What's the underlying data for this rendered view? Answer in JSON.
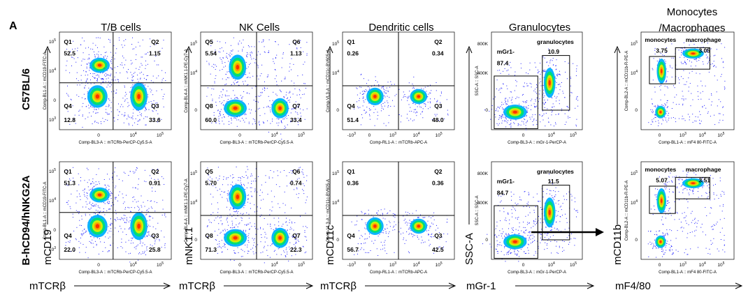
{
  "figure": {
    "panel_letter": "A",
    "row_labels": [
      "C57BL/6",
      "B-hCD94/hNKG2A"
    ],
    "column_titles": [
      "T/B cells",
      "NK Cells",
      "Dendritic cells",
      "Granulocytes",
      "Monocytes\n/Macrophages"
    ],
    "big_axis_y": [
      "mCD19",
      "mNK1.1",
      "mCD11c",
      "SSC-A",
      "mCD11b"
    ],
    "big_axis_x": [
      "mTCRβ",
      "mTCRβ",
      "mTCRβ",
      "mGr-1",
      "mF4/80"
    ]
  },
  "colors": {
    "density": [
      "#1a1aff",
      "#00b0ff",
      "#00e070",
      "#d8f000",
      "#ff9a00",
      "#ff2a00"
    ],
    "gate_line": "#000000",
    "arrow": "#000000"
  },
  "chart_data": [
    {
      "type": "scatter",
      "row": "C57BL/6",
      "population": "T/B cells",
      "xlabel": "Comp-BL3-A :: mTCRb-PerCP-Cy5.5-A",
      "ylabel": "Comp-BL1-A :: mCD19-FITC-A",
      "xtick_labels": [
        "0",
        "10^4",
        "10^5"
      ],
      "ytick_labels": [
        "10^3",
        "0",
        "10^4",
        "10^5"
      ],
      "gates": [
        {
          "name": "Q1",
          "value": "52.5"
        },
        {
          "name": "Q2",
          "value": "1.15"
        },
        {
          "name": "Q3",
          "value": "33.6"
        },
        {
          "name": "Q4",
          "value": "12.8"
        }
      ]
    },
    {
      "type": "scatter",
      "row": "C57BL/6",
      "population": "NK Cells",
      "xlabel": "Comp-BL3-A :: mTCRb-PerCP-Cy5.5-A",
      "ylabel": "Comp-BL4-A :: mNK1.1-PE-Cy7-A",
      "xtick_labels": [
        "0",
        "10^4",
        "10^5"
      ],
      "ytick_labels": [
        "0",
        "10^4",
        "10^5"
      ],
      "gates": [
        {
          "name": "Q5",
          "value": "5.54"
        },
        {
          "name": "Q6",
          "value": "1.13"
        },
        {
          "name": "Q7",
          "value": "33.4"
        },
        {
          "name": "Q8",
          "value": "60.0"
        }
      ]
    },
    {
      "type": "scatter",
      "row": "C57BL/6",
      "population": "Dendritic cells",
      "xlabel": "Comp-RL1-A :: mTCRb-APC-A",
      "ylabel": "Comp-VL3-A :: mCD11c-BV605-A",
      "xtick_labels": [
        "-10^3",
        "0",
        "10^3",
        "10^4",
        "10^5"
      ],
      "ytick_labels": [
        "0",
        "10^4",
        "10^5"
      ],
      "gates": [
        {
          "name": "Q1",
          "value": "0.26"
        },
        {
          "name": "Q2",
          "value": "0.34"
        },
        {
          "name": "Q3",
          "value": "48.0"
        },
        {
          "name": "Q4",
          "value": "51.4"
        }
      ]
    },
    {
      "type": "scatter",
      "row": "C57BL/6",
      "population": "Granulocytes",
      "xlabel": "Comp-BL3-A :: mGr-1-PerCP-A",
      "ylabel": "SSC-A :: SSC-A",
      "xtick_labels": [
        "0",
        "10^4",
        "10^5"
      ],
      "ytick_labels": [
        "0",
        "400K",
        "800K"
      ],
      "gates": [
        {
          "name": "mGr1-",
          "value": "87.4"
        },
        {
          "name": "granulocytes",
          "value": "10.9"
        }
      ]
    },
    {
      "type": "scatter",
      "row": "C57BL/6",
      "population": "Monocytes/Macrophages",
      "xlabel": "Comp-BL1-A :: mF4 80-FITC-A",
      "ylabel": "Comp-BL2-A :: mCD11b-R-PE-A",
      "xtick_labels": [
        "0",
        "10^3",
        "10^4",
        "10^5"
      ],
      "ytick_labels": [
        "0",
        "10^4",
        "10^5"
      ],
      "gates": [
        {
          "name": "monocytes",
          "value": "3.75"
        },
        {
          "name": "macrophage",
          "value": "3.05"
        }
      ]
    },
    {
      "type": "scatter",
      "row": "B-hCD94/hNKG2A",
      "population": "T/B cells",
      "xlabel": "Comp-BL3-A :: mTCRb-PerCP-Cy5.5-A",
      "ylabel": "Comp-BL1-A :: mCD19-FITC-A",
      "xtick_labels": [
        "0",
        "10^4",
        "10^5"
      ],
      "ytick_labels": [
        "10^3",
        "0",
        "10^4",
        "10^5"
      ],
      "gates": [
        {
          "name": "Q1",
          "value": "51.3"
        },
        {
          "name": "Q2",
          "value": "0.91"
        },
        {
          "name": "Q3",
          "value": "25.8"
        },
        {
          "name": "Q4",
          "value": "22.0"
        }
      ]
    },
    {
      "type": "scatter",
      "row": "B-hCD94/hNKG2A",
      "population": "NK Cells",
      "xlabel": "Comp-BL3-A :: mTCRb-PerCP-Cy5.5-A",
      "ylabel": "Comp-BL4-A :: mNK1.1-PE-Cy7-A",
      "xtick_labels": [
        "0",
        "10^4",
        "10^5"
      ],
      "ytick_labels": [
        "0",
        "10^4",
        "10^5"
      ],
      "gates": [
        {
          "name": "Q5",
          "value": "5.70"
        },
        {
          "name": "Q6",
          "value": "0.74"
        },
        {
          "name": "Q7",
          "value": "22.3"
        },
        {
          "name": "Q8",
          "value": "71.3"
        }
      ]
    },
    {
      "type": "scatter",
      "row": "B-hCD94/hNKG2A",
      "population": "Dendritic cells",
      "xlabel": "Comp-RL1-A :: mTCRb-APC-A",
      "ylabel": "Comp-VL3-A :: mCD11c-BV605-A",
      "xtick_labels": [
        "-10^3",
        "0",
        "10^3",
        "10^4",
        "10^5"
      ],
      "ytick_labels": [
        "0",
        "10^4",
        "10^5"
      ],
      "gates": [
        {
          "name": "Q1",
          "value": "0.36"
        },
        {
          "name": "Q2",
          "value": "0.36"
        },
        {
          "name": "Q3",
          "value": "42.5"
        },
        {
          "name": "Q4",
          "value": "56.7"
        }
      ]
    },
    {
      "type": "scatter",
      "row": "B-hCD94/hNKG2A",
      "population": "Granulocytes",
      "xlabel": "Comp-BL3-A :: mGr-1-PerCP-A",
      "ylabel": "SSC-A :: SSC-A",
      "xtick_labels": [
        "0",
        "10^4",
        "10^5"
      ],
      "ytick_labels": [
        "0",
        "400K",
        "800K"
      ],
      "gates": [
        {
          "name": "mGr1-",
          "value": "84.7"
        },
        {
          "name": "granulocytes",
          "value": "11.5"
        }
      ]
    },
    {
      "type": "scatter",
      "row": "B-hCD94/hNKG2A",
      "population": "Monocytes/Macrophages",
      "xlabel": "Comp-BL1-A :: mF4 80-FITC-A",
      "ylabel": "Comp-BL2-A :: mCD11b-R-PE-A",
      "xtick_labels": [
        "0",
        "10^3",
        "10^4",
        "10^5"
      ],
      "ytick_labels": [
        "0",
        "10^4",
        "10^5"
      ],
      "gates": [
        {
          "name": "monocytes",
          "value": "5.07"
        },
        {
          "name": "macrophage",
          "value": "3.51"
        }
      ]
    }
  ]
}
